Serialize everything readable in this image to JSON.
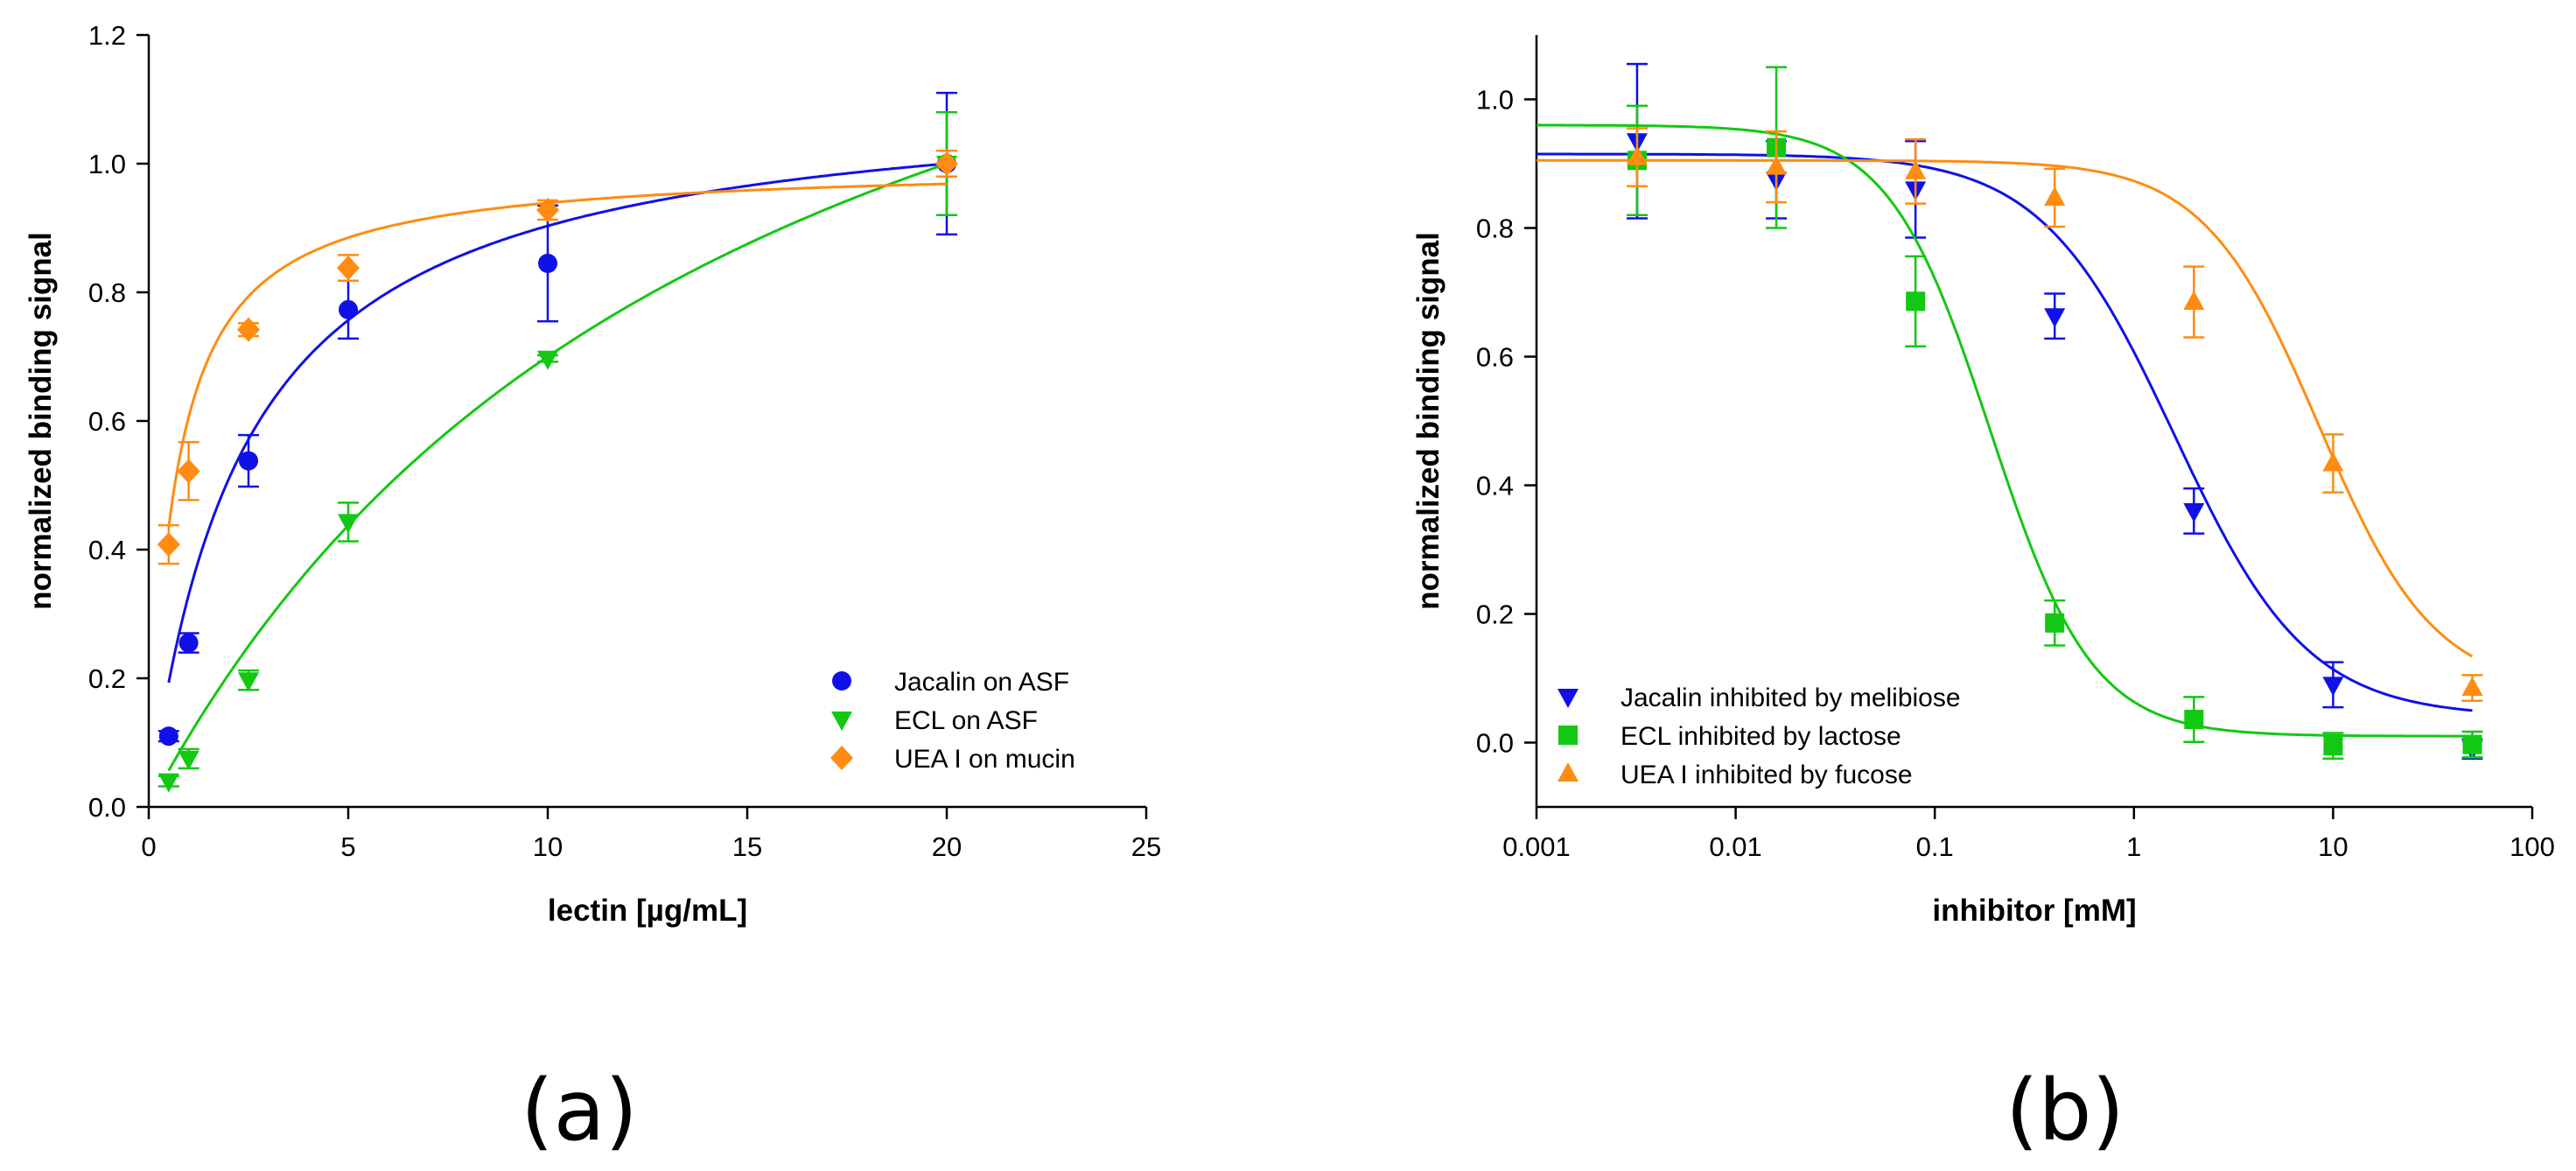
{
  "colors": {
    "blue": "#1010e8",
    "green": "#12c812",
    "orange": "#ff8c10"
  },
  "chart_data": [
    {
      "type": "scatter",
      "panel_label": "(a)",
      "title": "",
      "xlabel": "lectin [µg/mL]",
      "ylabel": "normalized binding signal",
      "xscale": "linear",
      "xlim": [
        0,
        25
      ],
      "ylim": [
        0,
        1.2
      ],
      "xticks": [
        0,
        5,
        10,
        15,
        20,
        25
      ],
      "xtick_labels": [
        "0",
        "5",
        "10",
        "15",
        "20",
        "25"
      ],
      "yticks": [
        0,
        0.2,
        0.4,
        0.6,
        0.8,
        1.0,
        1.2
      ],
      "ytick_labels": [
        "0.0",
        "0.2",
        "0.4",
        "0.6",
        "0.8",
        "1.0",
        "1.2"
      ],
      "grid": false,
      "legend_position": "bottom-right",
      "series": [
        {
          "name": "Jacalin on ASF",
          "color": "blue",
          "marker": "circle",
          "x": [
            0.5,
            1,
            2.5,
            5,
            10,
            20
          ],
          "y": [
            0.11,
            0.255,
            0.538,
            0.773,
            0.845,
            1.0
          ],
          "err": [
            0.008,
            0.015,
            0.04,
            0.045,
            0.09,
            0.11
          ],
          "fit": {
            "model": "hyperbola",
            "bmax": 1.12,
            "k": 2.4,
            "x0": 0.5,
            "x1": 20
          }
        },
        {
          "name": "ECL on ASF",
          "color": "green",
          "marker": "triangle-down",
          "x": [
            0.5,
            1,
            2.5,
            5,
            10,
            20
          ],
          "y": [
            0.04,
            0.075,
            0.197,
            0.443,
            0.697,
            1.0
          ],
          "err": [
            0.008,
            0.015,
            0.015,
            0.03,
            0.005,
            0.08
          ],
          "fit": {
            "model": "hyperbola",
            "bmax": 1.75,
            "k": 15.0,
            "x0": 0.5,
            "x1": 20
          }
        },
        {
          "name": "UEA I on mucin",
          "color": "orange",
          "marker": "diamond",
          "x": [
            0.5,
            1,
            2.5,
            5,
            10,
            20
          ],
          "y": [
            0.408,
            0.522,
            0.742,
            0.838,
            0.928,
            1.0
          ],
          "err": [
            0.03,
            0.045,
            0.01,
            0.02,
            0.015,
            0.02
          ],
          "fit": {
            "model": "hyperbola",
            "bmax": 1.0,
            "k": 0.65,
            "x0": 0.5,
            "x1": 20
          }
        }
      ]
    },
    {
      "type": "scatter",
      "panel_label": "(b)",
      "title": "",
      "xlabel": "inhibitor [mM]",
      "ylabel": "normalized binding signal",
      "xscale": "log",
      "xlim": [
        0.001,
        100
      ],
      "ylim": [
        -0.1,
        1.1
      ],
      "xticks": [
        0.001,
        0.01,
        0.1,
        1,
        10,
        100
      ],
      "xtick_labels": [
        "0.001",
        "0.01",
        "0.1",
        "1",
        "10",
        "100"
      ],
      "yticks": [
        0,
        0.2,
        0.4,
        0.6,
        0.8,
        1.0
      ],
      "ytick_labels": [
        "0.0",
        "0.2",
        "0.4",
        "0.6",
        "0.8",
        "1.0"
      ],
      "grid": false,
      "legend_position": "bottom-left",
      "series": [
        {
          "name": "Jacalin inhibited by melibiose",
          "color": "blue",
          "marker": "triangle-down",
          "x": [
            0.0032,
            0.016,
            0.08,
            0.4,
            2,
            10,
            50
          ],
          "y": [
            0.935,
            0.875,
            0.86,
            0.663,
            0.36,
            0.09,
            -0.01
          ],
          "err": [
            0.12,
            0.06,
            0.075,
            0.035,
            0.035,
            0.035,
            0.015
          ],
          "fit": {
            "model": "logistic",
            "top": 0.915,
            "bottom": 0.04,
            "ic50": 1.6,
            "hill": 1.3,
            "x0": 0.001,
            "x1": 50
          }
        },
        {
          "name": "ECL inhibited by lactose",
          "color": "green",
          "marker": "square",
          "x": [
            0.0032,
            0.016,
            0.08,
            0.4,
            2,
            10,
            50
          ],
          "y": [
            0.905,
            0.925,
            0.686,
            0.186,
            0.036,
            -0.005,
            -0.003
          ],
          "err": [
            0.085,
            0.125,
            0.07,
            0.035,
            0.035,
            0.02,
            0.02
          ],
          "fit": {
            "model": "logistic",
            "top": 0.96,
            "bottom": 0.01,
            "ic50": 0.19,
            "hill": 1.7,
            "x0": 0.001,
            "x1": 50
          }
        },
        {
          "name": "UEA I inhibited by fucose",
          "color": "orange",
          "marker": "triangle-up",
          "x": [
            0.0032,
            0.016,
            0.08,
            0.4,
            2,
            10,
            50
          ],
          "y": [
            0.91,
            0.895,
            0.888,
            0.847,
            0.685,
            0.434,
            0.085
          ],
          "err": [
            0.045,
            0.055,
            0.05,
            0.045,
            0.055,
            0.045,
            0.02
          ],
          "fit": {
            "model": "logistic",
            "top": 0.905,
            "bottom": 0.08,
            "ic50": 8.5,
            "hill": 1.5,
            "x0": 0.001,
            "x1": 50
          }
        }
      ]
    }
  ]
}
